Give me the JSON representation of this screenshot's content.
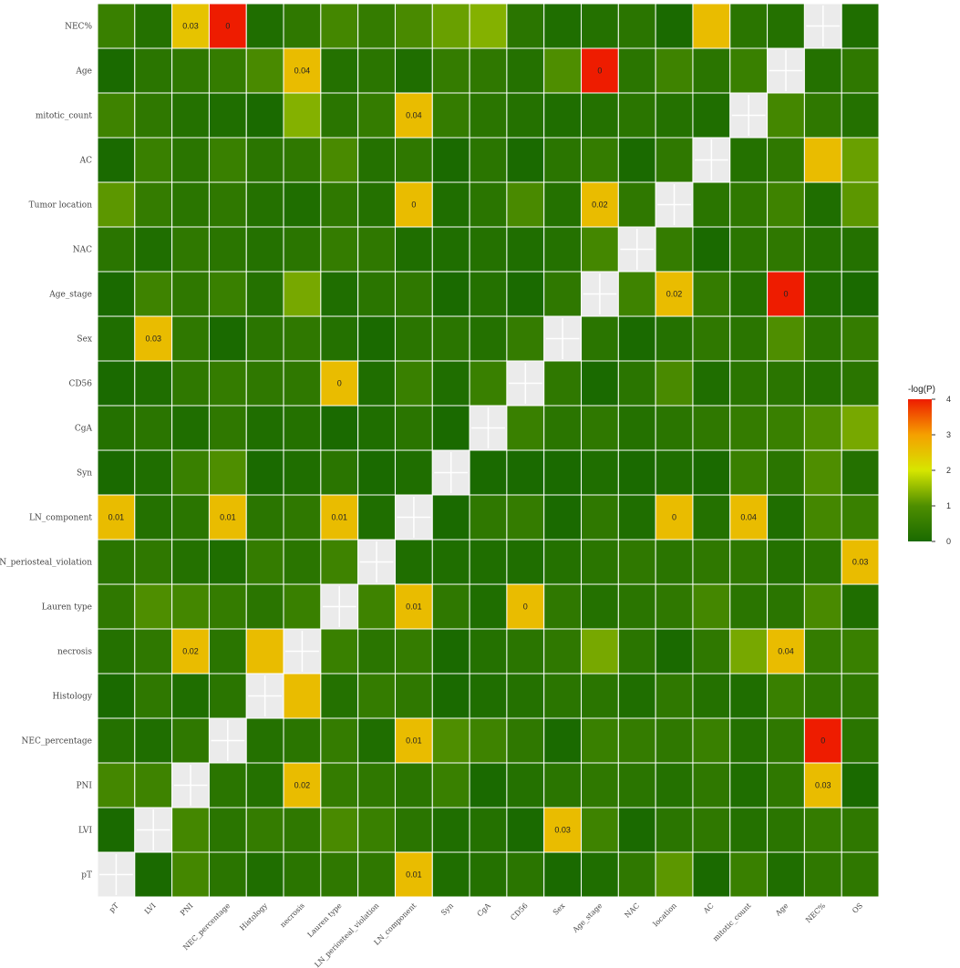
{
  "chart_data": {
    "type": "heatmap",
    "title": "",
    "x_categories": [
      "pT",
      "LVI",
      "PNI",
      "NEC_percentage",
      "Histology",
      "necrosis",
      "Lauren type",
      "LN_periosteal_violation",
      "LN_component",
      "Syn",
      "CgA",
      "CD56",
      "Sex",
      "Age_stage",
      "NAC",
      "location",
      "AC",
      "mitotic_count",
      "Age",
      "NEC%",
      "OS"
    ],
    "y_categories": [
      "NEC%",
      "Age",
      "mitotic_count",
      "AC",
      "Tumor location",
      "NAC",
      "Age_stage",
      "Sex",
      "CD56",
      "CgA",
      "Syn",
      "LN_component",
      "LN_periosteal_violation",
      "Lauren type",
      "necrosis",
      "Histology",
      "NEC_percentage",
      "PNI",
      "LVI",
      "pT"
    ],
    "values": [
      [
        0.6,
        0.2,
        2.5,
        4.0,
        0.1,
        0.4,
        0.8,
        0.5,
        0.9,
        1.2,
        1.4,
        0.3,
        0.1,
        0.2,
        0.3,
        0.0,
        2.6,
        0.3,
        0.2,
        null,
        0.1
      ],
      [
        0.0,
        0.3,
        0.4,
        0.5,
        0.9,
        2.6,
        0.2,
        0.3,
        0.1,
        0.5,
        0.4,
        0.2,
        1.0,
        4.0,
        0.3,
        0.7,
        0.3,
        0.6,
        null,
        0.2,
        0.4
      ],
      [
        0.7,
        0.4,
        0.2,
        0.1,
        0.0,
        1.4,
        0.3,
        0.5,
        2.6,
        0.5,
        0.3,
        0.2,
        0.1,
        0.2,
        0.3,
        0.2,
        0.1,
        null,
        0.8,
        0.4,
        0.2
      ],
      [
        0.0,
        0.6,
        0.3,
        0.6,
        0.3,
        0.4,
        0.9,
        0.2,
        0.4,
        0.0,
        0.3,
        0.0,
        0.3,
        0.5,
        0.0,
        0.4,
        null,
        0.2,
        0.4,
        2.6,
        1.2
      ],
      [
        1.1,
        0.5,
        0.3,
        0.4,
        0.2,
        0.1,
        0.4,
        0.2,
        2.6,
        0.1,
        0.3,
        0.9,
        0.2,
        2.6,
        0.4,
        null,
        0.3,
        0.4,
        0.7,
        0.1,
        1.1
      ],
      [
        0.3,
        0.1,
        0.4,
        0.3,
        0.2,
        0.3,
        0.5,
        0.4,
        0.1,
        0.1,
        0.2,
        0.1,
        0.2,
        0.8,
        null,
        0.5,
        0.0,
        0.3,
        0.4,
        0.2,
        0.2
      ],
      [
        0.0,
        0.7,
        0.4,
        0.6,
        0.2,
        1.3,
        0.1,
        0.3,
        0.4,
        0.0,
        0.2,
        0.0,
        0.4,
        null,
        0.7,
        2.6,
        0.5,
        0.2,
        4.0,
        0.1,
        0.0
      ],
      [
        0.1,
        2.6,
        0.4,
        0.0,
        0.3,
        0.4,
        0.2,
        0.0,
        0.3,
        0.3,
        0.2,
        0.5,
        null,
        0.3,
        0.0,
        0.2,
        0.4,
        0.3,
        1.0,
        0.3,
        0.5
      ],
      [
        0.0,
        0.1,
        0.4,
        0.5,
        0.4,
        0.4,
        2.6,
        0.1,
        0.6,
        0.1,
        0.6,
        null,
        0.4,
        0.0,
        0.3,
        0.9,
        0.1,
        0.3,
        0.3,
        0.2,
        0.3
      ],
      [
        0.2,
        0.3,
        0.1,
        0.4,
        0.1,
        0.2,
        0.0,
        0.1,
        0.3,
        0.0,
        null,
        0.6,
        0.3,
        0.4,
        0.2,
        0.3,
        0.4,
        0.5,
        0.6,
        1.0,
        1.3
      ],
      [
        0.0,
        0.1,
        0.6,
        1.0,
        0.0,
        0.1,
        0.3,
        0.0,
        0.1,
        null,
        0.0,
        0.0,
        0.0,
        0.1,
        0.0,
        0.1,
        0.0,
        0.6,
        0.3,
        1.0,
        0.2
      ],
      [
        2.6,
        0.2,
        0.3,
        2.6,
        0.3,
        0.4,
        2.6,
        0.1,
        null,
        0.0,
        0.4,
        0.5,
        0.0,
        0.4,
        0.1,
        2.6,
        0.2,
        2.6,
        0.1,
        0.8,
        0.6
      ],
      [
        0.3,
        0.4,
        0.2,
        0.1,
        0.5,
        0.3,
        0.7,
        null,
        0.1,
        0.1,
        0.1,
        0.1,
        0.2,
        0.3,
        0.4,
        0.3,
        0.4,
        0.4,
        0.2,
        0.3,
        2.6
      ],
      [
        0.4,
        1.0,
        0.8,
        0.5,
        0.3,
        0.6,
        null,
        0.7,
        2.6,
        0.4,
        0.1,
        2.6,
        0.4,
        0.2,
        0.3,
        0.4,
        0.8,
        0.3,
        0.3,
        0.9,
        0.1
      ],
      [
        0.2,
        0.4,
        2.6,
        0.3,
        2.6,
        null,
        0.6,
        0.3,
        0.5,
        0.0,
        0.2,
        0.3,
        0.4,
        1.3,
        0.3,
        0.0,
        0.4,
        1.3,
        2.6,
        0.5,
        0.6
      ],
      [
        0.0,
        0.4,
        0.1,
        0.3,
        null,
        2.6,
        0.2,
        0.5,
        0.4,
        0.0,
        0.1,
        0.2,
        0.3,
        0.3,
        0.1,
        0.4,
        0.2,
        0.1,
        0.6,
        0.4,
        0.4
      ],
      [
        0.2,
        0.1,
        0.4,
        null,
        0.2,
        0.3,
        0.5,
        0.1,
        2.6,
        1.0,
        0.7,
        0.4,
        0.0,
        0.6,
        0.5,
        0.4,
        0.6,
        0.2,
        0.4,
        4.0,
        0.3
      ],
      [
        0.8,
        0.7,
        null,
        0.3,
        0.2,
        2.6,
        0.5,
        0.4,
        0.3,
        0.6,
        0.0,
        0.2,
        0.3,
        0.4,
        0.3,
        0.2,
        0.4,
        0.1,
        0.4,
        2.6,
        0.0
      ],
      [
        0.0,
        null,
        0.8,
        0.3,
        0.5,
        0.4,
        0.9,
        0.6,
        0.3,
        0.1,
        0.2,
        0.0,
        2.6,
        0.7,
        0.0,
        0.3,
        0.4,
        0.2,
        0.3,
        0.5,
        0.4
      ],
      [
        null,
        0.0,
        0.8,
        0.3,
        0.1,
        0.3,
        0.4,
        0.4,
        2.6,
        0.1,
        0.2,
        0.3,
        0.0,
        0.1,
        0.4,
        1.1,
        0.0,
        0.6,
        0.1,
        0.4,
        0.4
      ]
    ],
    "cell_labels": [
      {
        "row": 0,
        "col": 2,
        "text": "0.03"
      },
      {
        "row": 0,
        "col": 3,
        "text": "0"
      },
      {
        "row": 1,
        "col": 5,
        "text": "0.04"
      },
      {
        "row": 1,
        "col": 13,
        "text": "0"
      },
      {
        "row": 2,
        "col": 8,
        "text": "0.04"
      },
      {
        "row": 4,
        "col": 8,
        "text": "0"
      },
      {
        "row": 4,
        "col": 13,
        "text": "0.02"
      },
      {
        "row": 6,
        "col": 15,
        "text": "0.02"
      },
      {
        "row": 6,
        "col": 18,
        "text": "0"
      },
      {
        "row": 7,
        "col": 1,
        "text": "0.03"
      },
      {
        "row": 8,
        "col": 6,
        "text": "0"
      },
      {
        "row": 11,
        "col": 0,
        "text": "0.01"
      },
      {
        "row": 11,
        "col": 3,
        "text": "0.01"
      },
      {
        "row": 11,
        "col": 6,
        "text": "0.01"
      },
      {
        "row": 11,
        "col": 15,
        "text": "0"
      },
      {
        "row": 11,
        "col": 17,
        "text": "0.04"
      },
      {
        "row": 12,
        "col": 20,
        "text": "0.03"
      },
      {
        "row": 13,
        "col": 8,
        "text": "0.01"
      },
      {
        "row": 13,
        "col": 11,
        "text": "0"
      },
      {
        "row": 14,
        "col": 2,
        "text": "0.02"
      },
      {
        "row": 14,
        "col": 18,
        "text": "0.04"
      },
      {
        "row": 16,
        "col": 8,
        "text": "0.01"
      },
      {
        "row": 16,
        "col": 19,
        "text": "0"
      },
      {
        "row": 17,
        "col": 5,
        "text": "0.02"
      },
      {
        "row": 17,
        "col": 19,
        "text": "0.03"
      },
      {
        "row": 18,
        "col": 12,
        "text": "0.03"
      },
      {
        "row": 19,
        "col": 8,
        "text": "0.01"
      }
    ],
    "legend": {
      "title": "-log(P)",
      "ticks": [
        "0",
        "1",
        "2",
        "3",
        "4"
      ],
      "range": [
        0,
        4
      ],
      "placement": "right",
      "colors": [
        "#1a6a00",
        "#4e8e00",
        "#d6e600",
        "#f5a000",
        "#ee1c00"
      ]
    },
    "grid": true,
    "panel_background": "#e9e9e9",
    "missing_color": "#ebebeb"
  }
}
